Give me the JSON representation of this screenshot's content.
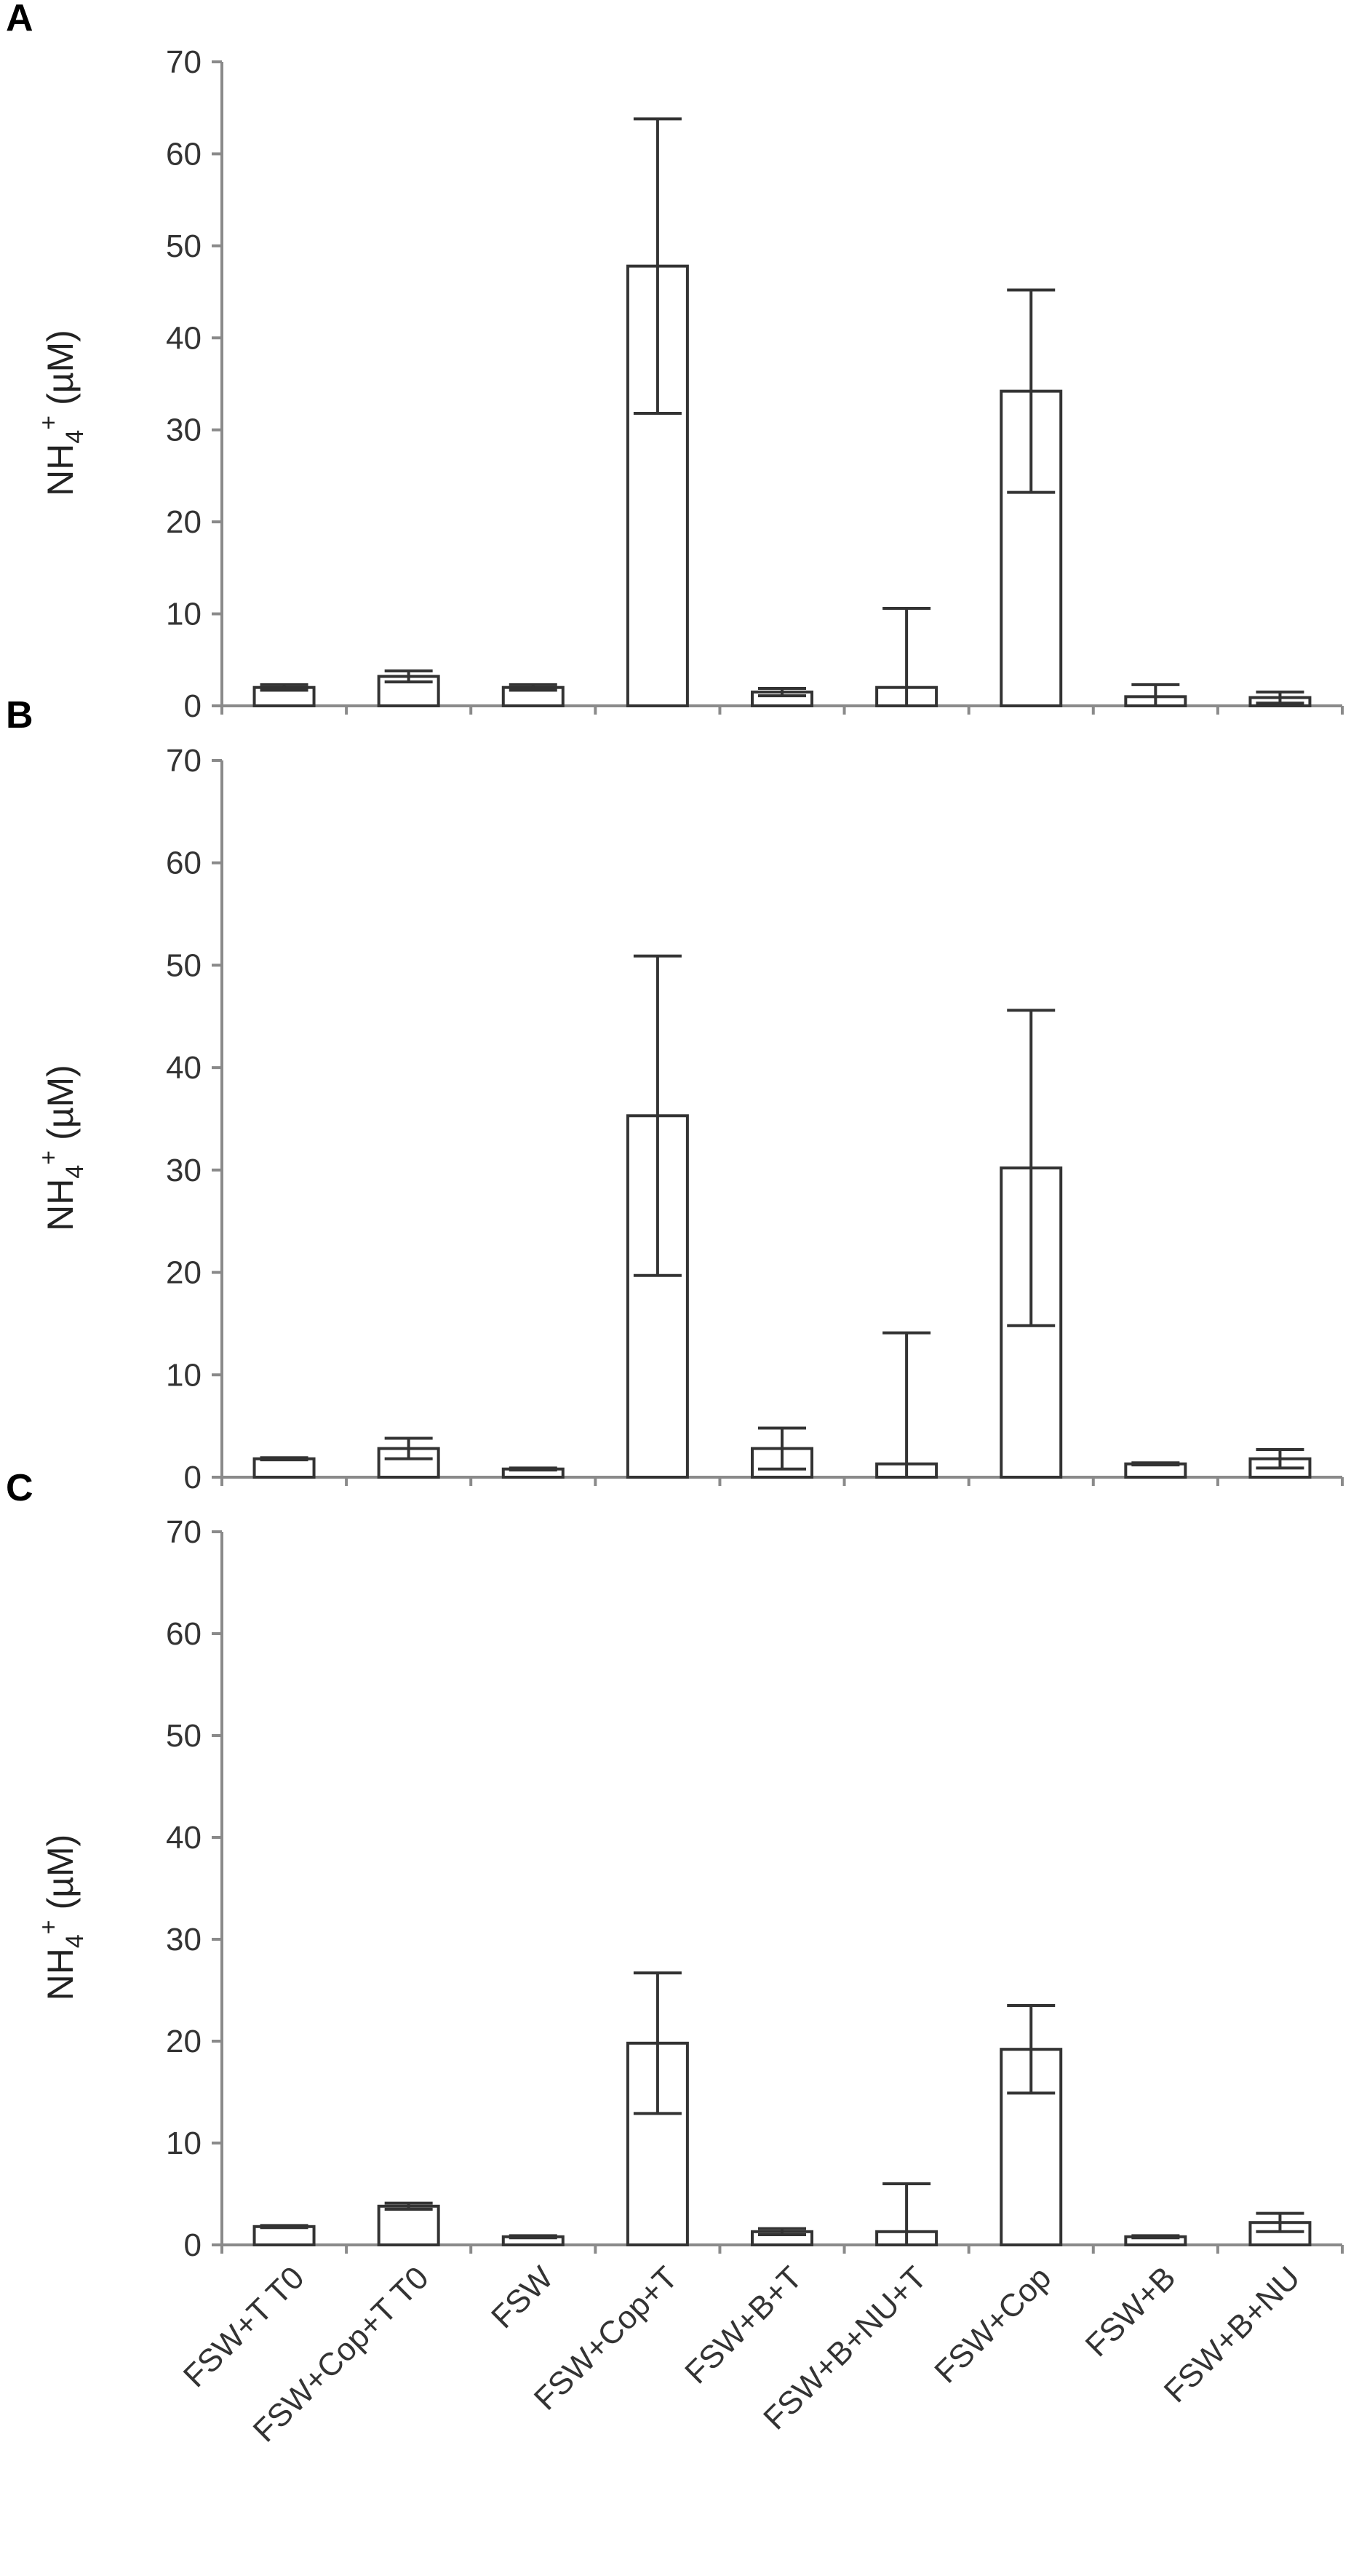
{
  "chart_data": [
    {
      "type": "bar",
      "panel_label": "A",
      "ylabel": {
        "main": "NH",
        "sub": "4",
        "sup": "+",
        "unit": " (µM)"
      },
      "ylim": [
        0,
        70
      ],
      "yticks": [
        0,
        10,
        20,
        30,
        40,
        50,
        60,
        70
      ],
      "grid": false,
      "categories": [
        "FSW+T T0",
        "FSW+Cop+T T0",
        "FSW",
        "FSW+Cop+T",
        "FSW+B+T",
        "FSW+B+NU+T",
        "FSW+Cop",
        "FSW+B",
        "FSW+B+NU"
      ],
      "values": [
        2.0,
        3.2,
        2.0,
        47.8,
        1.5,
        2.0,
        34.2,
        1.0,
        0.9
      ],
      "error": [
        0.3,
        0.6,
        0.3,
        16.0,
        0.4,
        8.6,
        11.0,
        1.3,
        0.6
      ]
    },
    {
      "type": "bar",
      "panel_label": "B",
      "ylabel": {
        "main": "NH",
        "sub": "4",
        "sup": "+",
        "unit": " (µM)"
      },
      "ylim": [
        0,
        70
      ],
      "yticks": [
        0,
        10,
        20,
        30,
        40,
        50,
        60,
        70
      ],
      "grid": false,
      "categories": [
        "FSW+T T0",
        "FSW+Cop+T T0",
        "FSW",
        "FSW+Cop+T",
        "FSW+B+T",
        "FSW+B+NU+T",
        "FSW+Cop",
        "FSW+B",
        "FSW+B+NU"
      ],
      "values": [
        1.8,
        2.8,
        0.8,
        35.3,
        2.8,
        1.3,
        30.2,
        1.3,
        1.8
      ],
      "error": [
        0.1,
        1.0,
        0.1,
        15.6,
        2.0,
        12.8,
        15.4,
        0.1,
        0.9
      ]
    },
    {
      "type": "bar",
      "panel_label": "C",
      "ylabel": {
        "main": "NH",
        "sub": "4",
        "sup": "+",
        "unit": " (µM)"
      },
      "ylim": [
        0,
        70
      ],
      "yticks": [
        0,
        10,
        20,
        30,
        40,
        50,
        60,
        70
      ],
      "grid": false,
      "categories": [
        "FSW+T T0",
        "FSW+Cop+T T0",
        "FSW",
        "FSW+Cop+T",
        "FSW+B+T",
        "FSW+B+NU+T",
        "FSW+Cop",
        "FSW+B",
        "FSW+B+NU"
      ],
      "values": [
        1.8,
        3.8,
        0.8,
        19.8,
        1.3,
        1.3,
        19.2,
        0.8,
        2.2
      ],
      "error": [
        0.1,
        0.3,
        0.1,
        6.9,
        0.3,
        4.7,
        4.3,
        0.1,
        0.9
      ]
    }
  ]
}
